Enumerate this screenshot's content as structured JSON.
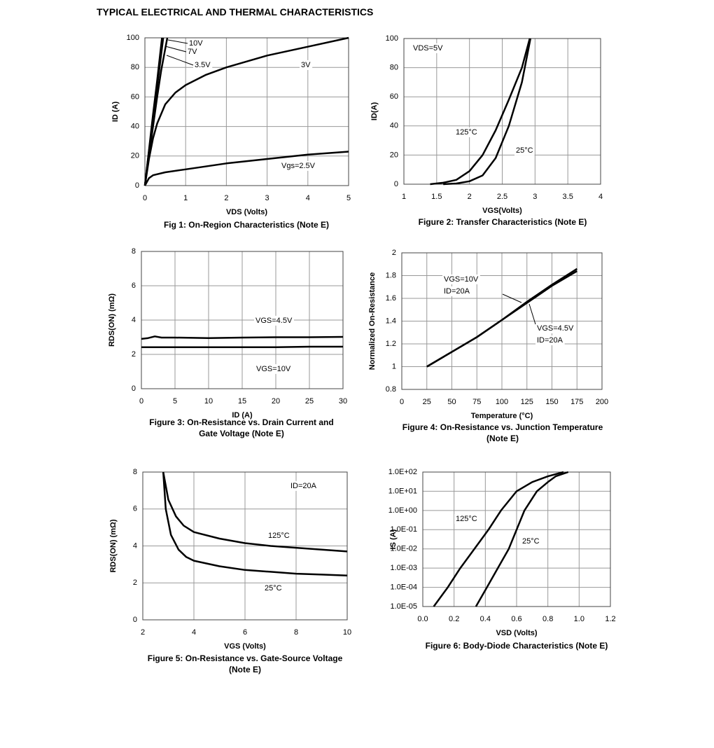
{
  "page_title": "TYPICAL ELECTRICAL AND THERMAL CHARACTERISTICS",
  "chart_data": [
    {
      "type": "line",
      "title": "Fig 1: On-Region Characteristics (Note E)",
      "x_label": "VDS (Volts)",
      "y_label": "ID (A)",
      "color": "#000000",
      "grid": true,
      "xlim": [
        0,
        5
      ],
      "xticks": [
        0,
        1,
        2,
        3,
        4,
        5
      ],
      "ylim": [
        0,
        100
      ],
      "yticks": [
        0,
        20,
        40,
        60,
        80,
        100
      ],
      "series": [
        {
          "name": "10V",
          "x": [
            0,
            0.1,
            0.2,
            0.3,
            0.42
          ],
          "values": [
            0,
            24,
            48,
            71,
            100
          ]
        },
        {
          "name": "7V",
          "x": [
            0,
            0.1,
            0.2,
            0.3,
            0.45
          ],
          "values": [
            0,
            23,
            45,
            67,
            100
          ]
        },
        {
          "name": "3.5V",
          "x": [
            0,
            0.1,
            0.2,
            0.3,
            0.4,
            0.55
          ],
          "values": [
            0,
            20,
            40,
            60,
            78,
            100
          ]
        },
        {
          "name": "3V",
          "x": [
            0,
            0.1,
            0.2,
            0.3,
            0.5,
            0.75,
            1,
            1.5,
            2,
            3,
            4,
            5
          ],
          "values": [
            0,
            18,
            32,
            42,
            55,
            63,
            68,
            75,
            80,
            88,
            94,
            100
          ]
        },
        {
          "name": "Vgs=2.5V",
          "x": [
            0,
            0.1,
            0.2,
            0.5,
            1,
            2,
            3,
            4,
            5
          ],
          "values": [
            0,
            5,
            7,
            9,
            11,
            15,
            18,
            21,
            23
          ]
        }
      ]
    },
    {
      "type": "line",
      "title": "Figure 2: Transfer Characteristics (Note E)",
      "x_label": "VGS(Volts)",
      "y_label": "ID(A)",
      "annotation": "VDS=5V",
      "color": "#000000",
      "grid": true,
      "xlim": [
        1,
        4
      ],
      "xticks": [
        1,
        1.5,
        2,
        2.5,
        3,
        3.5,
        4
      ],
      "ylim": [
        0,
        100
      ],
      "yticks": [
        0,
        20,
        40,
        60,
        80,
        100
      ],
      "series": [
        {
          "name": "125°C",
          "x": [
            1.4,
            1.6,
            1.8,
            2,
            2.2,
            2.4,
            2.6,
            2.8,
            2.92
          ],
          "values": [
            0,
            1,
            3,
            9,
            20,
            37,
            58,
            80,
            100
          ]
        },
        {
          "name": "25°C",
          "x": [
            1.6,
            1.8,
            2,
            2.2,
            2.4,
            2.6,
            2.8,
            2.93
          ],
          "values": [
            0,
            0.5,
            2,
            6,
            18,
            40,
            70,
            100
          ]
        }
      ]
    },
    {
      "type": "line",
      "title": "Figure 3: On-Resistance vs. Drain Current and Gate Voltage (Note E)",
      "x_label": "ID (A)",
      "y_label": "RDS(ON) (mΩ)",
      "color": "#000000",
      "grid": true,
      "xlim": [
        0,
        30
      ],
      "xticks": [
        0,
        5,
        10,
        15,
        20,
        25,
        30
      ],
      "ylim": [
        0,
        8
      ],
      "yticks": [
        0,
        2,
        4,
        6,
        8
      ],
      "series": [
        {
          "name": "VGS=4.5V",
          "x": [
            0,
            1,
            2,
            3,
            5,
            10,
            15,
            20,
            25,
            30
          ],
          "values": [
            2.9,
            2.95,
            3.05,
            2.98,
            2.98,
            2.95,
            2.98,
            3.0,
            3.0,
            3.02
          ]
        },
        {
          "name": "VGS=10V",
          "x": [
            0,
            1,
            2,
            3,
            5,
            10,
            15,
            20,
            25,
            30
          ],
          "values": [
            2.42,
            2.42,
            2.42,
            2.42,
            2.42,
            2.42,
            2.42,
            2.42,
            2.45,
            2.45
          ]
        }
      ]
    },
    {
      "type": "line",
      "title": "Figure 4: On-Resistance vs. Junction Temperature (Note E)",
      "x_label": "Temperature (°C)",
      "y_label": "Normalized On-Resistance",
      "color": "#000000",
      "grid": true,
      "xlim": [
        0,
        200
      ],
      "xticks": [
        0,
        25,
        50,
        75,
        100,
        125,
        150,
        175,
        200
      ],
      "ylim": [
        0.8,
        2
      ],
      "yticks": [
        0.8,
        1,
        1.2,
        1.4,
        1.6,
        1.8,
        2
      ],
      "series": [
        {
          "name": "VGS=10V",
          "note": "ID=20A",
          "x": [
            25,
            50,
            75,
            100,
            125,
            150,
            175
          ],
          "values": [
            1,
            1.13,
            1.26,
            1.41,
            1.56,
            1.71,
            1.84
          ]
        },
        {
          "name": "VGS=4.5V",
          "note": "ID=20A",
          "x": [
            25,
            50,
            75,
            100,
            125,
            150,
            175
          ],
          "values": [
            1,
            1.13,
            1.26,
            1.41,
            1.57,
            1.72,
            1.86
          ]
        }
      ]
    },
    {
      "type": "line",
      "title": "Figure 5: On-Resistance vs. Gate-Source Voltage (Note E)",
      "x_label": "VGS (Volts)",
      "y_label": "RDS(ON) (mΩ)",
      "annotation": "ID=20A",
      "color": "#000000",
      "grid": true,
      "xlim": [
        2,
        10
      ],
      "xticks": [
        2,
        4,
        6,
        8,
        10
      ],
      "ylim": [
        0,
        8
      ],
      "yticks": [
        0,
        2,
        4,
        6,
        8
      ],
      "series": [
        {
          "name": "125°C",
          "x": [
            2.8,
            3,
            3.3,
            3.6,
            4,
            5,
            6,
            7,
            8,
            9,
            10
          ],
          "values": [
            8,
            6.5,
            5.6,
            5.1,
            4.75,
            4.4,
            4.15,
            4,
            3.9,
            3.8,
            3.7
          ]
        },
        {
          "name": "25°C",
          "x": [
            2.8,
            2.9,
            3.1,
            3.4,
            3.7,
            4,
            5,
            6,
            7,
            8,
            9,
            10
          ],
          "values": [
            8,
            6,
            4.6,
            3.8,
            3.4,
            3.2,
            2.9,
            2.7,
            2.6,
            2.5,
            2.45,
            2.4
          ]
        }
      ]
    },
    {
      "type": "line",
      "title": "Figure 6: Body-Diode Characteristics (Note E)",
      "x_label": "VSD (Volts)",
      "y_label": "IS (A)",
      "color": "#000000",
      "grid": true,
      "ylog": true,
      "xlim": [
        0,
        1.2
      ],
      "xticks": [
        {
          "value": 0,
          "label": "0.0"
        },
        0.2,
        0.4,
        0.6,
        0.8,
        {
          "value": 1,
          "label": "1.0"
        },
        1.2
      ],
      "ylim": [
        1e-05,
        100
      ],
      "yticks": [
        {
          "value": 1e-05,
          "label": "1.0E-05"
        },
        {
          "value": 0.0001,
          "label": "1.0E-04"
        },
        {
          "value": 0.001,
          "label": "1.0E-03"
        },
        {
          "value": 0.01,
          "label": "1.0E-02"
        },
        {
          "value": 0.1,
          "label": "1.0E-01"
        },
        {
          "value": 1,
          "label": "1.0E+00"
        },
        {
          "value": 10,
          "label": "1.0E+01"
        },
        {
          "value": 100,
          "label": "1.0E+02"
        }
      ],
      "series": [
        {
          "name": "125°C",
          "x": [
            0.07,
            0.16,
            0.24,
            0.33,
            0.42,
            0.5,
            0.6,
            0.7,
            0.8,
            0.9
          ],
          "values": [
            1e-05,
            0.0001,
            0.001,
            0.01,
            0.1,
            1,
            10,
            30,
            60,
            100
          ]
        },
        {
          "name": "25°C",
          "x": [
            0.34,
            0.41,
            0.48,
            0.55,
            0.6,
            0.65,
            0.73,
            0.8,
            0.85,
            0.93
          ],
          "values": [
            1e-05,
            0.0001,
            0.001,
            0.01,
            0.1,
            1,
            10,
            30,
            60,
            100
          ]
        }
      ]
    }
  ]
}
